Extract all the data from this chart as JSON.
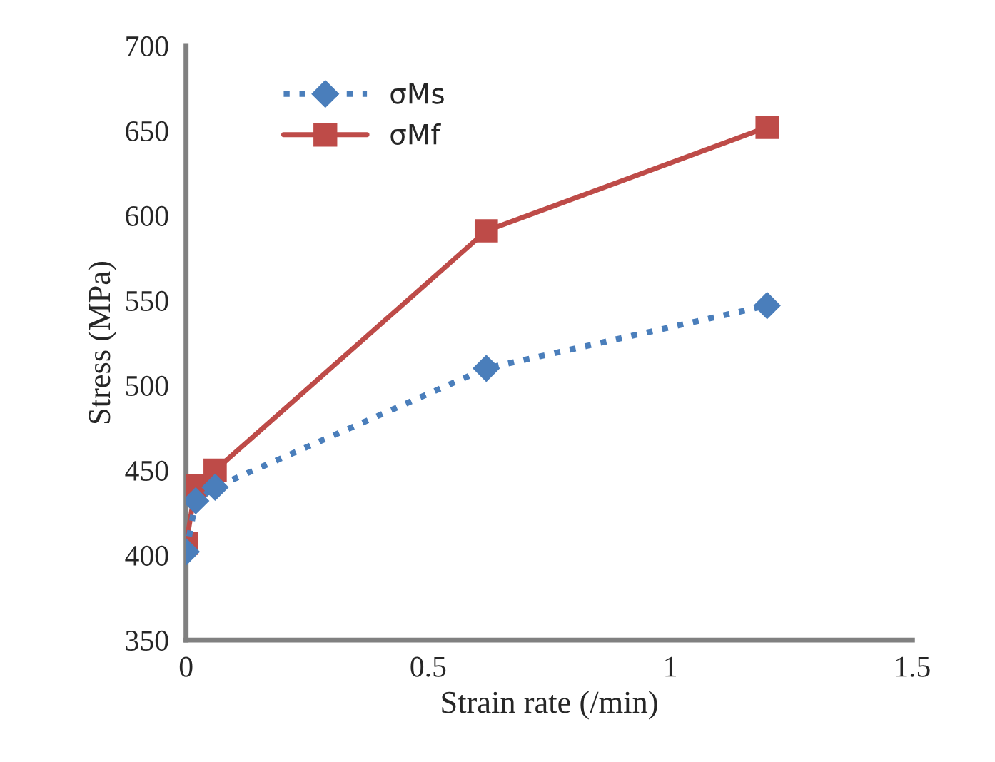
{
  "chart_data": {
    "type": "line",
    "xlabel": "Strain rate (/min)",
    "ylabel": "Stress (MPa)",
    "x": [
      0.0005,
      0.02,
      0.06,
      0.62,
      1.2
    ],
    "series": [
      {
        "name": "σMs",
        "color": "#4a7ebb",
        "values": [
          402,
          432,
          440,
          510,
          547
        ],
        "marker": "diamond",
        "line_style": "dotted"
      },
      {
        "name": "σMf",
        "color": "#be4b48",
        "values": [
          407,
          441,
          450,
          591,
          652
        ],
        "marker": "square",
        "line_style": "solid"
      }
    ],
    "xlim": [
      0,
      1.5
    ],
    "xticks": [
      0,
      0.5,
      1,
      1.5
    ],
    "ylim": [
      350,
      700
    ],
    "yticks": [
      350,
      400,
      450,
      500,
      550,
      600,
      650,
      700
    ],
    "grid": false,
    "legend": "top left"
  }
}
